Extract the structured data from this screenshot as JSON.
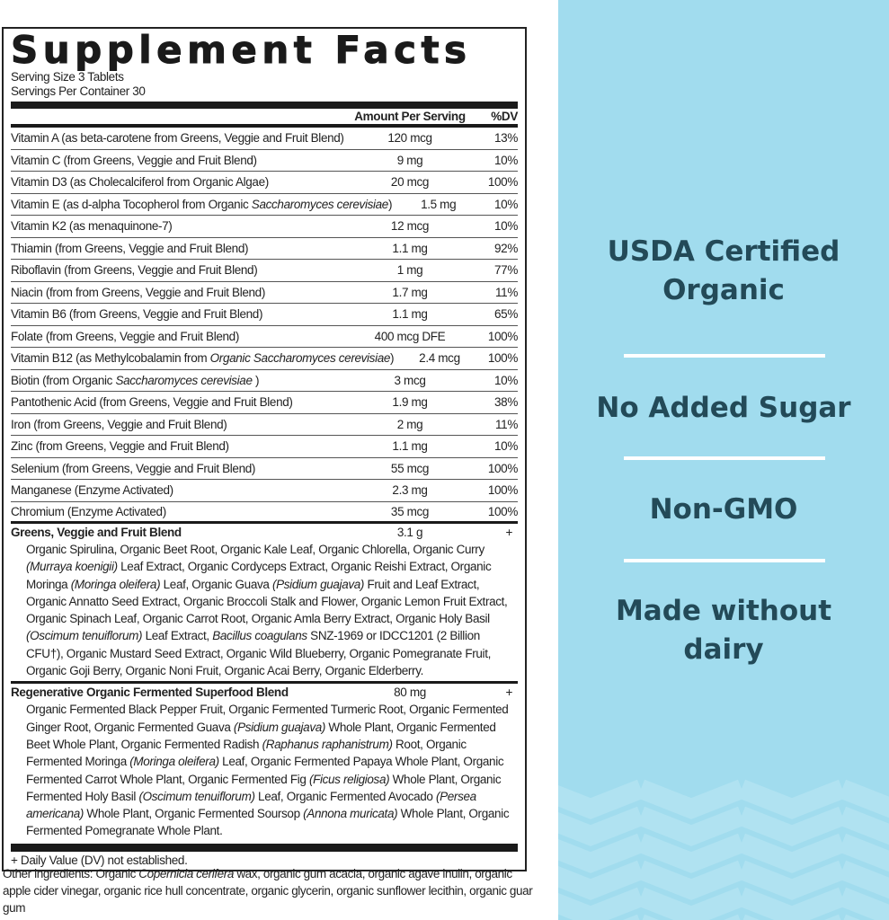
{
  "label": {
    "title": "Supplement Facts",
    "serving_size": "Serving Size 3 Tablets",
    "servings_per_container": "Servings Per Container 30",
    "header": {
      "amount": "Amount Per Serving",
      "dv": "%DV"
    },
    "rows": [
      {
        "name": [
          {
            "t": "Vitamin A (as beta-carotene from Greens, Veggie and Fruit Blend)"
          }
        ],
        "amount": "120 mcg",
        "dv": "13%"
      },
      {
        "name": [
          {
            "t": "Vitamin C (from Greens, Veggie and Fruit Blend)"
          }
        ],
        "amount": "9 mg",
        "dv": "10%"
      },
      {
        "name": [
          {
            "t": "Vitamin D3 (as Cholecalciferol from Organic Algae)"
          }
        ],
        "amount": "20 mcg",
        "dv": "100%"
      },
      {
        "name": [
          {
            "t": "Vitamin E (as d-alpha Tocopherol from Organic "
          },
          {
            "t": "Saccharomyces cerevisiae",
            "i": true
          },
          {
            "t": ")"
          }
        ],
        "amount": "1.5 mg",
        "dv": "10%"
      },
      {
        "name": [
          {
            "t": "Vitamin K2 (as menaquinone-7)"
          }
        ],
        "amount": "12 mcg",
        "dv": "10%"
      },
      {
        "name": [
          {
            "t": "Thiamin (from Greens, Veggie and Fruit Blend)"
          }
        ],
        "amount": "1.1 mg",
        "dv": "92%"
      },
      {
        "name": [
          {
            "t": "Riboflavin (from Greens, Veggie and Fruit Blend)"
          }
        ],
        "amount": "1 mg",
        "dv": "77%"
      },
      {
        "name": [
          {
            "t": "Niacin (from from Greens, Veggie and Fruit Blend)"
          }
        ],
        "amount": "1.7 mg",
        "dv": "11%"
      },
      {
        "name": [
          {
            "t": "Vitamin B6 (from Greens, Veggie and Fruit Blend)"
          }
        ],
        "amount": "1.1 mg",
        "dv": "65%"
      },
      {
        "name": [
          {
            "t": "Folate (from Greens, Veggie and Fruit Blend)"
          }
        ],
        "amount": "400 mcg DFE",
        "dv": "100%"
      },
      {
        "name": [
          {
            "t": "Vitamin B12 (as Methylcobalamin from "
          },
          {
            "t": "Organic Saccharomyces cerevisiae",
            "i": true
          },
          {
            "t": ")"
          }
        ],
        "amount": "2.4 mcg",
        "dv": "100%"
      },
      {
        "name": [
          {
            "t": "Biotin (from Organic "
          },
          {
            "t": "Saccharomyces cerevisiae",
            "i": true
          },
          {
            "t": " )"
          }
        ],
        "amount": "3 mcg",
        "dv": "10%"
      },
      {
        "name": [
          {
            "t": "Pantothenic Acid (from Greens, Veggie and Fruit Blend)"
          }
        ],
        "amount": "1.9 mg",
        "dv": "38%"
      },
      {
        "name": [
          {
            "t": "Iron (from Greens, Veggie and Fruit Blend)"
          }
        ],
        "amount": "2 mg",
        "dv": "11%"
      },
      {
        "name": [
          {
            "t": "Zinc (from Greens, Veggie and Fruit Blend)"
          }
        ],
        "amount": "1.1 mg",
        "dv": "10%"
      },
      {
        "name": [
          {
            "t": "Selenium (from Greens, Veggie and Fruit Blend)"
          }
        ],
        "amount": "55 mcg",
        "dv": "100%"
      },
      {
        "name": [
          {
            "t": "Manganese (Enzyme Activated)"
          }
        ],
        "amount": "2.3 mg",
        "dv": "100%"
      },
      {
        "name": [
          {
            "t": "Chromium (Enzyme Activated)"
          }
        ],
        "amount": "35 mcg",
        "dv": "100%"
      }
    ],
    "blends": [
      {
        "name": "Greens, Veggie and Fruit Blend",
        "amount": "3.1 g",
        "dv": "+",
        "ingredients": [
          {
            "t": "Organic Spirulina, Organic Beet Root, Organic Kale Leaf, Organic Chlorella, Organic Curry "
          },
          {
            "t": "(Murraya koenigii)",
            "i": true
          },
          {
            "t": " Leaf Extract, Organic Cordyceps Extract, Organic Reishi Extract, Organic Moringa "
          },
          {
            "t": "(Moringa oleifera)",
            "i": true
          },
          {
            "t": " Leaf, Organic Guava "
          },
          {
            "t": "(Psidium guajava)",
            "i": true
          },
          {
            "t": " Fruit and Leaf Extract, Organic Annatto Seed Extract, Organic Broccoli Stalk and Flower, Organic Lemon Fruit Extract, Organic Spinach Leaf, Organic Carrot Root, Organic Amla Berry Extract, Organic Holy Basil "
          },
          {
            "t": "(Oscimum tenuiflorum)",
            "i": true
          },
          {
            "t": " Leaf Extract, "
          },
          {
            "t": "Bacillus coagulans",
            "i": true
          },
          {
            "t": " SNZ-1969 or IDCC1201 (2 Billion CFU†), Organic Mustard Seed Extract, Organic Wild Blueberry, Organic Pomegranate Fruit, Organic Goji Berry, Organic Noni Fruit, Organic Acai Berry, Organic Elderberry."
          }
        ]
      },
      {
        "name": "Regenerative Organic Fermented Superfood Blend",
        "amount": "80 mg",
        "dv": "+",
        "ingredients": [
          {
            "t": "Organic Fermented Black Pepper Fruit, Organic Fermented Turmeric Root, Organic Fermented Ginger Root, Organic Fermented Guava "
          },
          {
            "t": "(Psidium guajava)",
            "i": true
          },
          {
            "t": " Whole Plant, Organic Fermented Beet Whole Plant, Organic Fermented Radish "
          },
          {
            "t": "(Raphanus raphanistrum)",
            "i": true
          },
          {
            "t": " Root, Organic Fermented Moringa "
          },
          {
            "t": "(Moringa oleifera)",
            "i": true
          },
          {
            "t": " Leaf, Organic Fermented Papaya Whole Plant, Organic Fermented Carrot Whole Plant, Organic Fermented Fig "
          },
          {
            "t": "(Ficus religiosa)",
            "i": true
          },
          {
            "t": " Whole Plant, Organic Fermented Holy Basil "
          },
          {
            "t": "(Oscimum tenuiflorum)",
            "i": true
          },
          {
            "t": " Leaf, Organic Fermented Avocado "
          },
          {
            "t": "(Persea americana)",
            "i": true
          },
          {
            "t": " Whole Plant, Organic Fermented Soursop "
          },
          {
            "t": "(Annona muricata)",
            "i": true
          },
          {
            "t": " Whole Plant, Organic Fermented Pomegranate Whole Plant."
          }
        ]
      }
    ],
    "footnote": "+ Daily Value (DV) not established."
  },
  "other_ingredients": [
    {
      "t": "Other ingredients: Organic "
    },
    {
      "t": "Copernicia cerifera",
      "i": true
    },
    {
      "t": " wax, organic gum acacia, organic agave inulin, organic apple cider vinegar, organic rice hull concentrate, organic glycerin, organic sunflower lecithin, organic guar gum"
    }
  ],
  "claims": {
    "usda": "USDA Certified Organic",
    "sugar": "No Added Sugar",
    "gmo": "Non-GMO",
    "dairy": "Made without dairy"
  },
  "colors": {
    "panel": "#a1dcee",
    "claim_text": "#234a58",
    "ink": "#1a1a1a"
  }
}
